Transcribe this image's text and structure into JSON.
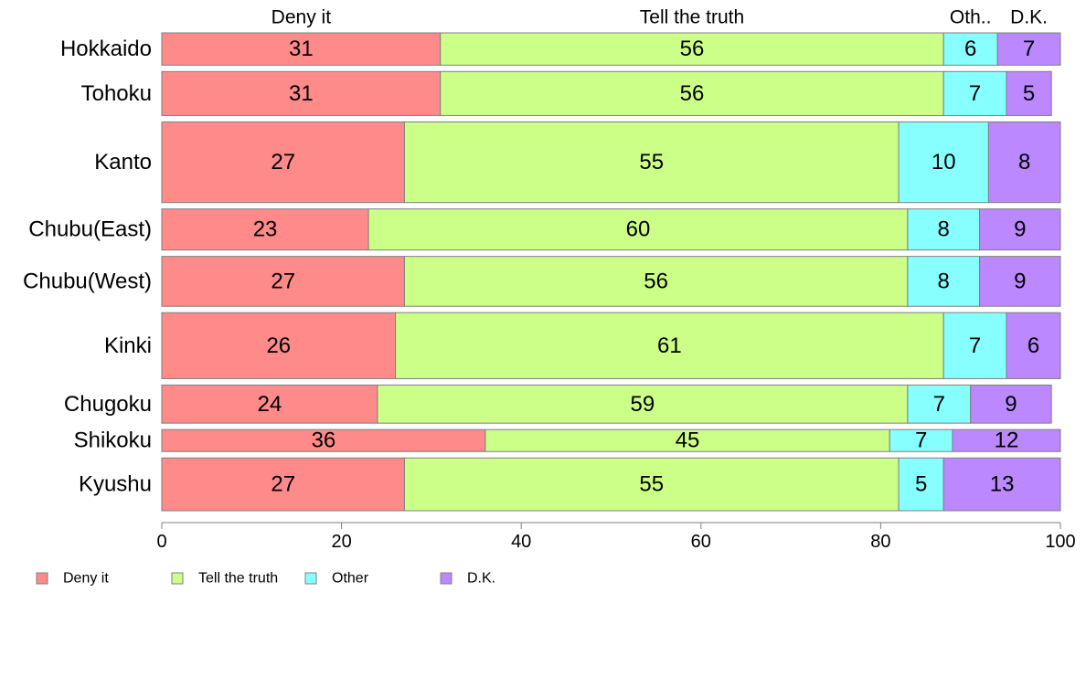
{
  "chart_data": {
    "type": "bar",
    "orientation": "horizontal",
    "stacked": true,
    "categories": [
      "Hokkaido",
      "Tohoku",
      "Kanto",
      "Chubu(East)",
      "Chubu(West)",
      "Kinki",
      "Chugoku",
      "Shikoku",
      "Kyushu"
    ],
    "series": [
      {
        "name": "Deny it",
        "color": "#FF8A8A",
        "values": [
          31,
          31,
          27,
          23,
          27,
          26,
          24,
          36,
          27
        ]
      },
      {
        "name": "Tell the truth",
        "color": "#CCFF88",
        "values": [
          56,
          56,
          55,
          60,
          56,
          61,
          59,
          45,
          55
        ]
      },
      {
        "name": "Other",
        "color": "#88FFFF",
        "values": [
          6,
          7,
          10,
          8,
          8,
          7,
          7,
          7,
          5
        ]
      },
      {
        "name": "D.K.",
        "color": "#BB88FF",
        "values": [
          7,
          5,
          8,
          9,
          9,
          6,
          9,
          12,
          13
        ]
      }
    ],
    "top_labels": [
      "Deny it",
      "Tell the truth",
      "Oth..",
      "D.K."
    ],
    "x_ticks": [
      0,
      20,
      40,
      60,
      80,
      100
    ],
    "xlim": [
      0,
      100
    ],
    "row_weights": [
      2.2,
      3.0,
      5.5,
      2.8,
      3.4,
      4.5,
      2.6,
      1.5,
      3.6
    ],
    "legend_position": "bottom-left",
    "grid": false,
    "xlabel": "",
    "ylabel": "",
    "title": ""
  }
}
